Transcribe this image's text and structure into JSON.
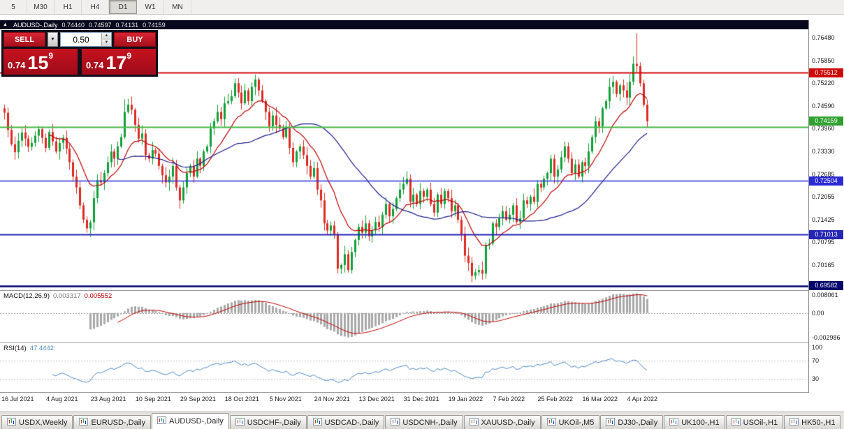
{
  "toolbar": {
    "periods": [
      {
        "label": "5",
        "active": false
      },
      {
        "label": "M30",
        "active": false
      },
      {
        "label": "H1",
        "active": false
      },
      {
        "label": "H4",
        "active": false
      },
      {
        "label": "D1",
        "active": true
      },
      {
        "label": "W1",
        "active": false
      },
      {
        "label": "MN",
        "active": false
      }
    ]
  },
  "chart": {
    "title": "AUDUSD-,Daily",
    "open": "0.74440",
    "high": "0.74597",
    "low": "0.74131",
    "close": "0.74159"
  },
  "trade_panel": {
    "sell_label": "SELL",
    "buy_label": "BUY",
    "volume": "0.50",
    "sell_price": {
      "big_prefix": "0.74",
      "big": "15",
      "sup": "9"
    },
    "buy_price": {
      "big_prefix": "0.74",
      "big": "17",
      "sup": "9"
    }
  },
  "indicators": {
    "macd": {
      "label": "MACD(12,26,9)",
      "value1": "0.003317",
      "value2": "0.005552",
      "axis_top": "0.008061",
      "axis_zero": "0.00",
      "axis_bottom": "-0.002986"
    },
    "rsi": {
      "label": "RSI(14)",
      "value": "47.4442",
      "axis": [
        100,
        70,
        30
      ]
    }
  },
  "axis": {
    "price_ticks": [
      0.7648,
      0.7585,
      0.7522,
      0.7459,
      0.7396,
      0.7333,
      0.72685,
      0.72055,
      0.71425,
      0.70795,
      0.70165,
      0.69535
    ]
  },
  "levels": {
    "hlines": [
      {
        "price": 0.75512,
        "color": "#cc0a0a",
        "width": 2
      },
      {
        "price": 0.74,
        "color": "#43b843",
        "width": 2
      },
      {
        "price": 0.72504,
        "color": "#2a2ad4",
        "width": 1.5
      },
      {
        "price": 0.71013,
        "color": "#2525b5",
        "width": 2
      },
      {
        "price": 0.69582,
        "color": "#00006b",
        "width": 2.5
      }
    ],
    "price_labels": [
      {
        "price": 0.75512,
        "label": "0.75512",
        "bg": "#cc0a0a"
      },
      {
        "price": 0.74159,
        "label": "0.74159",
        "bg": "#2fa12f"
      },
      {
        "price": 0.72504,
        "label": "0.72504",
        "bg": "#2a2ad4"
      },
      {
        "price": 0.71013,
        "label": "0.71013",
        "bg": "#2525b5"
      },
      {
        "price": 0.69582,
        "label": "0.69582",
        "bg": "#00006b"
      }
    ]
  },
  "dates": {
    "labels": [
      "16 Jul 2021",
      "4 Aug 2021",
      "23 Aug 2021",
      "10 Sep 2021",
      "29 Sep 2021",
      "18 Oct 2021",
      "5 Nov 2021",
      "24 Nov 2021",
      "13 Dec 2021",
      "31 Dec 2021",
      "19 Jan 2022",
      "7 Feb 2022",
      "25 Feb 2022",
      "16 Mar 2022",
      "4 Apr 2022"
    ],
    "day_index": [
      0,
      13,
      26,
      39,
      52,
      65,
      78,
      91,
      104,
      117,
      130,
      143,
      156,
      169,
      182
    ]
  },
  "tabs": [
    {
      "label": "USDX,Weekly",
      "active": false
    },
    {
      "label": "EURUSD-,Daily",
      "active": false
    },
    {
      "label": "AUDUSD-,Daily",
      "active": true
    },
    {
      "label": "USDCHF-,Daily",
      "active": false
    },
    {
      "label": "USDCAD-,Daily",
      "active": false
    },
    {
      "label": "USDCNH-,Daily",
      "active": false
    },
    {
      "label": "XAUUSD-,Daily",
      "active": false
    },
    {
      "label": "UKOil-,M5",
      "active": false
    },
    {
      "label": "DJ30-,Daily",
      "active": false
    },
    {
      "label": "UK100-,H1",
      "active": false
    },
    {
      "label": "USOil-,H1",
      "active": false
    },
    {
      "label": "HK50-,H1",
      "active": false
    }
  ],
  "chart_data": {
    "type": "candlestick",
    "symbol": "AUDUSD-",
    "timeframe": "Daily",
    "title": "AUDUSD-,Daily",
    "price_range": [
      0.6948,
      0.7672
    ],
    "up_color": "#10a037",
    "down_color": "#dd2a23",
    "ma_fast": {
      "type": "ema",
      "period": 13,
      "color": "#c00000"
    },
    "ma_slow": {
      "type": "sma",
      "period": 34,
      "color": "#1a1a8c"
    },
    "macd_params": {
      "fast": 12,
      "slow": 26,
      "signal": 9,
      "hist_color": "#a8a8a8",
      "signal_color": "#c00000"
    },
    "rsi_params": {
      "period": 14,
      "color": "#4f87c0",
      "levels": [
        70,
        30
      ],
      "range": [
        0,
        110
      ]
    },
    "closes": [
      0.744,
      0.7392,
      0.7352,
      0.733,
      0.7362,
      0.7385,
      0.7368,
      0.7345,
      0.7356,
      0.7376,
      0.7394,
      0.737,
      0.7342,
      0.7386,
      0.736,
      0.7332,
      0.7356,
      0.737,
      0.734,
      0.7302,
      0.7262,
      0.7232,
      0.7182,
      0.7142,
      0.7118,
      0.7135,
      0.7202,
      0.7252,
      0.7246,
      0.7272,
      0.7302,
      0.7332,
      0.7312,
      0.7346,
      0.7372,
      0.7442,
      0.7462,
      0.7448,
      0.7406,
      0.7368,
      0.7382,
      0.7322,
      0.7312,
      0.7336,
      0.7326,
      0.7292,
      0.7266,
      0.7246,
      0.7262,
      0.7292,
      0.7232,
      0.7196,
      0.7232,
      0.7272,
      0.7292,
      0.7262,
      0.7312,
      0.7292,
      0.7332,
      0.7346,
      0.7396,
      0.7416,
      0.7442,
      0.7422,
      0.7466,
      0.7472,
      0.7486,
      0.7522,
      0.7496,
      0.7466,
      0.7502,
      0.7472,
      0.7512,
      0.7532,
      0.7502,
      0.7472,
      0.7442,
      0.7402,
      0.7432,
      0.7406,
      0.7396,
      0.7372,
      0.7396,
      0.7342,
      0.7302,
      0.7332,
      0.7346,
      0.7322,
      0.7292,
      0.7262,
      0.7286,
      0.7226,
      0.7196,
      0.7132,
      0.7112,
      0.7126,
      0.7102,
      0.7006,
      0.7016,
      0.7046,
      0.7002,
      0.7052,
      0.7086,
      0.7122,
      0.7106,
      0.7132,
      0.7096,
      0.7112,
      0.7136,
      0.7122,
      0.7156,
      0.7186,
      0.7152,
      0.7172,
      0.7202,
      0.7226,
      0.7242,
      0.7256,
      0.7192,
      0.7212,
      0.7186,
      0.7222,
      0.7206,
      0.7226,
      0.7186,
      0.7162,
      0.7212,
      0.7186,
      0.7222,
      0.7202,
      0.7166,
      0.7182,
      0.7142,
      0.7102,
      0.7042,
      0.7022,
      0.6986,
      0.6996,
      0.7002,
      0.6992,
      0.7072,
      0.7076,
      0.7132,
      0.7122,
      0.7146,
      0.7166,
      0.7142,
      0.7156,
      0.7182,
      0.7136,
      0.7146,
      0.7196,
      0.7186,
      0.7206,
      0.7192,
      0.7242,
      0.7232,
      0.7256,
      0.7272,
      0.7312,
      0.7262,
      0.7282,
      0.7316,
      0.7346,
      0.7312,
      0.7272,
      0.7296,
      0.7262,
      0.7302,
      0.7292,
      0.7332,
      0.7372,
      0.7416,
      0.7402,
      0.7452,
      0.7472,
      0.7512,
      0.7526,
      0.7492,
      0.7516,
      0.7502,
      0.7482,
      0.7526,
      0.7576,
      0.757,
      0.7522,
      0.7462,
      0.7416
    ],
    "spikes": [
      {
        "i": 24,
        "low": 0.7106
      },
      {
        "i": 35,
        "high": 0.7477
      },
      {
        "i": 67,
        "high": 0.7535
      },
      {
        "i": 73,
        "high": 0.7546
      },
      {
        "i": 97,
        "low": 0.6993
      },
      {
        "i": 136,
        "low": 0.6968
      },
      {
        "i": 176,
        "high": 0.7536
      },
      {
        "i": 184,
        "high": 0.7661
      },
      {
        "i": 187,
        "low": 0.74
      }
    ]
  }
}
